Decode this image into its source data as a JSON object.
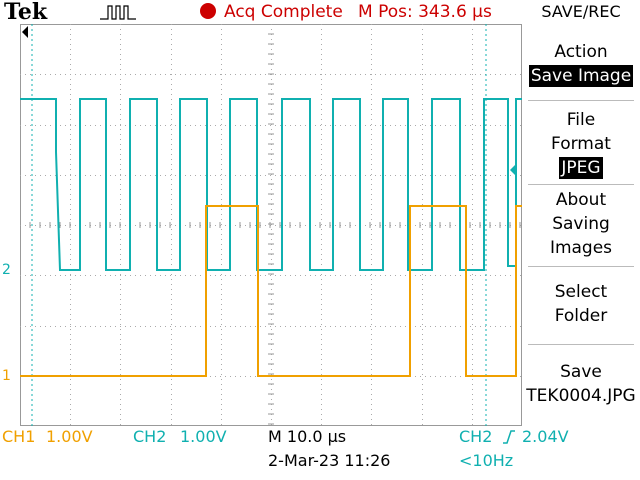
{
  "header": {
    "brand": "Tek",
    "acq_status": "Acq Complete",
    "m_pos": "M Pos: 343.6 µs",
    "menu_title": "SAVE/REC"
  },
  "menu": {
    "action_label": "Action",
    "action_value": "Save Image",
    "format_label_1": "File",
    "format_label_2": "Format",
    "format_value": "JPEG",
    "about_1": "About",
    "about_2": "Saving",
    "about_3": "Images",
    "select_1": "Select",
    "select_2": "Folder",
    "save_label": "Save",
    "save_file": "TEK0004.JPG"
  },
  "markers": {
    "ch2": "2",
    "ch1": "1"
  },
  "footer": {
    "ch1": "CH1",
    "ch1_scale": "1.00V",
    "ch2": "CH2",
    "ch2_scale": "1.00V",
    "timebase": "M 10.0 µs",
    "trigger_source": "CH2",
    "trigger_level": "2.04V",
    "date": "2-Mar-23 11:26",
    "trigger_freq": "<10Hz"
  },
  "colors": {
    "ch1": "#f0a000",
    "ch2": "#10b0b0",
    "acq": "#cc0000"
  }
}
